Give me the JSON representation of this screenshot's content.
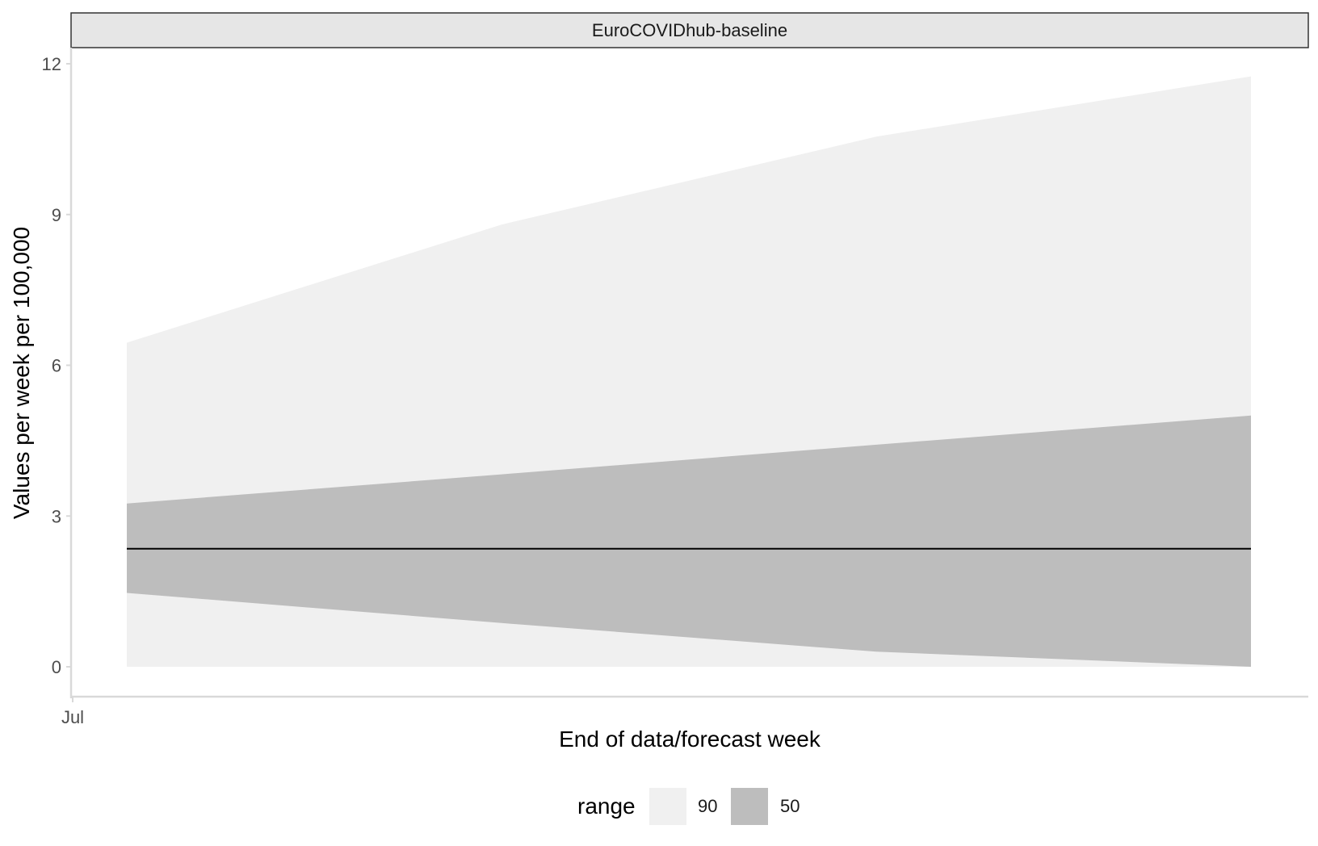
{
  "chart_data": {
    "type": "area",
    "facet_title": "EuroCOVIDhub-baseline",
    "xlabel": "End of data/forecast week",
    "ylabel": "Values per week per 100,000",
    "x_tick_labels": [
      "Jul"
    ],
    "y_ticks": [
      0,
      3,
      6,
      9,
      12
    ],
    "ylim": [
      -0.6,
      12.3
    ],
    "x_steps": [
      1,
      2,
      3,
      4
    ],
    "bands": [
      {
        "name": "90",
        "color": "#f0f0f0",
        "lower": [
          0,
          0,
          0,
          0
        ],
        "upper": [
          6.45,
          8.8,
          10.55,
          11.75
        ]
      },
      {
        "name": "50",
        "color": "#bdbdbd",
        "lower": [
          1.47,
          0.87,
          0.3,
          0.0
        ],
        "upper": [
          3.25,
          3.83,
          4.42,
          5.0
        ]
      }
    ],
    "median": {
      "color": "#000000",
      "values": [
        2.35,
        2.35,
        2.35,
        2.35
      ]
    },
    "legend": {
      "title": "range",
      "position": "bottom",
      "items": [
        "90",
        "50"
      ]
    },
    "grid": false
  }
}
